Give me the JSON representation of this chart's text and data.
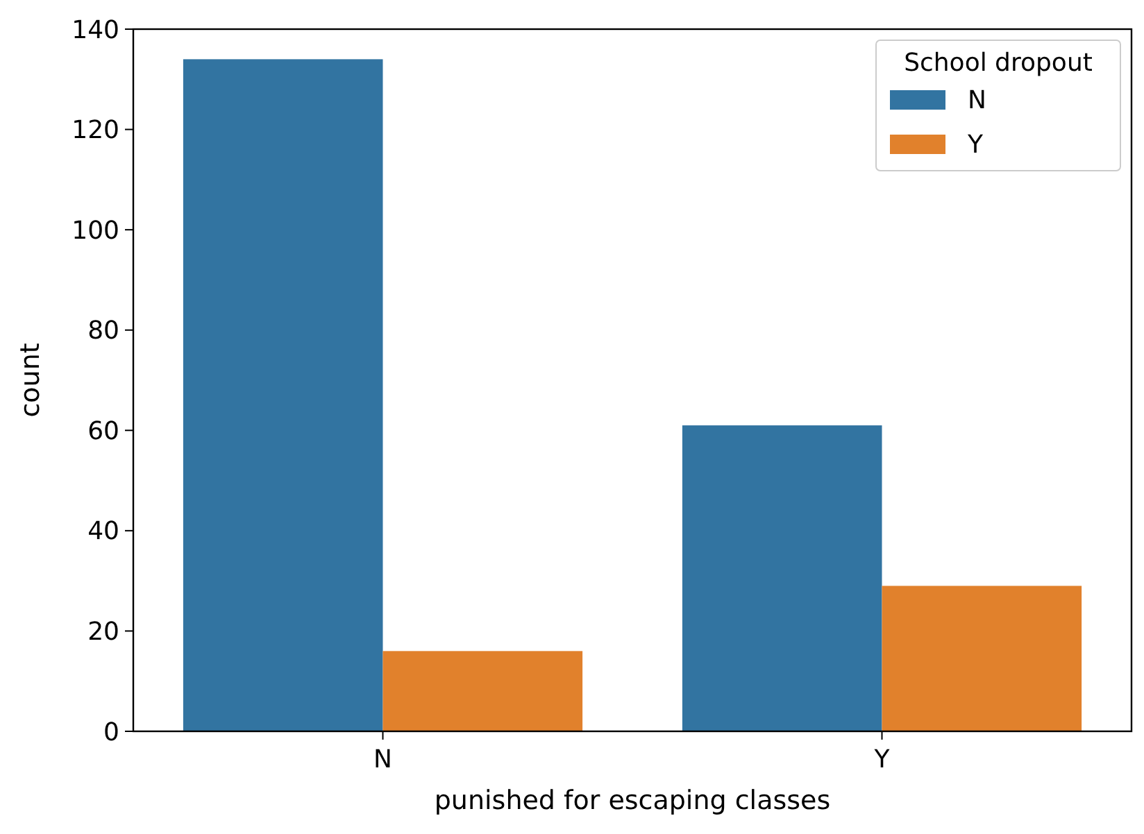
{
  "chart_data": {
    "type": "bar",
    "xlabel": "punished for escaping classes",
    "ylabel": "count",
    "legend_title": "School dropout",
    "categories": [
      "N",
      "Y"
    ],
    "series": [
      {
        "name": "N",
        "color": "#3274a1",
        "values": [
          134,
          61
        ]
      },
      {
        "name": "Y",
        "color": "#e1812c",
        "values": [
          16,
          29
        ]
      }
    ],
    "ylim": [
      0,
      140
    ],
    "yticks": [
      0,
      20,
      40,
      60,
      80,
      100,
      120,
      140
    ],
    "legend": "top right"
  }
}
